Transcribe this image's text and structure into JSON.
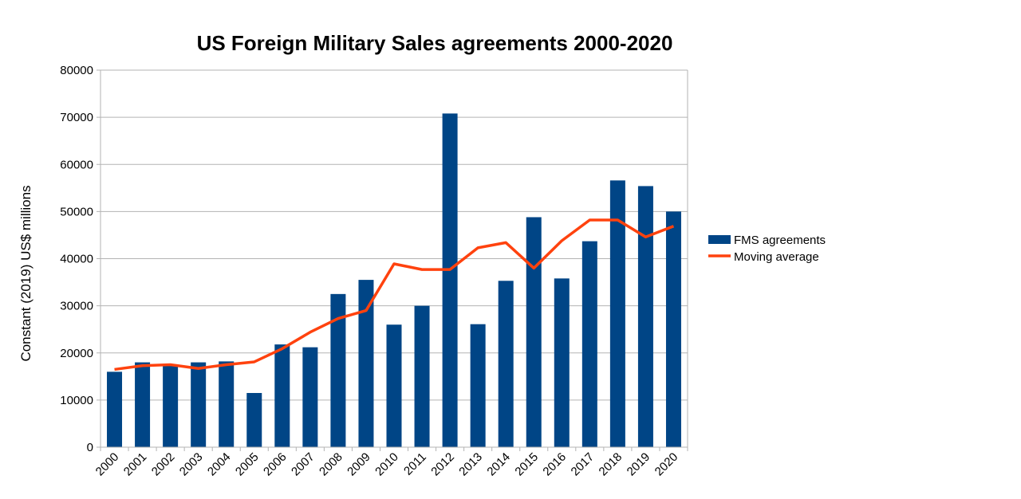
{
  "chart_data": {
    "type": "bar",
    "title": "US Foreign Military Sales agreements 2000-2020",
    "xlabel": "",
    "ylabel": "Constant (2019) US$ millions",
    "ylim": [
      0,
      80000
    ],
    "yticks": [
      0,
      10000,
      20000,
      30000,
      40000,
      50000,
      60000,
      70000,
      80000
    ],
    "grid": true,
    "legend_position": "right",
    "categories": [
      "2000",
      "2001",
      "2002",
      "2003",
      "2004",
      "2005",
      "2006",
      "2007",
      "2008",
      "2009",
      "2010",
      "2011",
      "2012",
      "2013",
      "2014",
      "2015",
      "2016",
      "2017",
      "2018",
      "2019",
      "2020"
    ],
    "series": [
      {
        "name": "FMS agreements",
        "type": "bar",
        "color": "#004586",
        "values": [
          16000,
          18000,
          17500,
          18000,
          18200,
          11500,
          21800,
          21200,
          32500,
          35500,
          26000,
          30000,
          70800,
          26100,
          35300,
          48800,
          35800,
          43700,
          56600,
          55400,
          50000
        ]
      },
      {
        "name": "Moving average",
        "type": "line",
        "color": "#ff420e",
        "values": [
          16500,
          17300,
          17500,
          16700,
          17500,
          18100,
          20900,
          24400,
          27300,
          29000,
          38900,
          37700,
          37700,
          42300,
          43400,
          38000,
          43800,
          48200,
          48200,
          44600,
          46900
        ]
      }
    ]
  }
}
